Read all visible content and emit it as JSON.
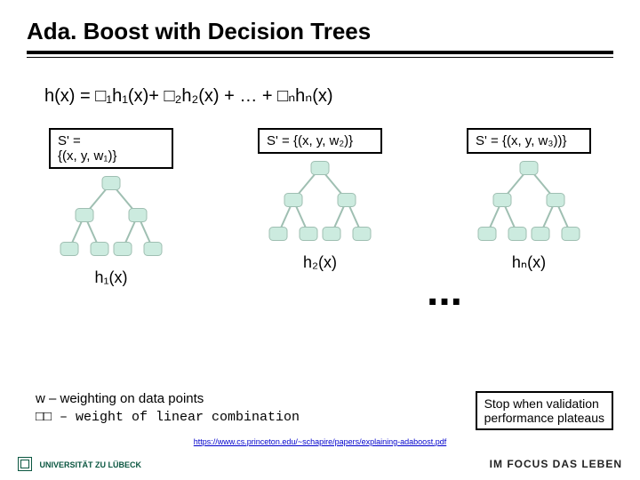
{
  "title": "Ada. Boost with Decision Trees",
  "formula": "h(x) = □₁h₁(x)+ □₂h₂(x) + … + □ₙhₙ(x)",
  "trees": [
    {
      "s_label": "S' =\n{(x, y, w₁)}",
      "h_label": "h₁(x)"
    },
    {
      "s_label": "S' = {(x, y, w₂)}",
      "h_label": "h₂(x)"
    },
    {
      "s_label": "S' = {(x, y, w₃))}",
      "h_label": "hₙ(x)"
    }
  ],
  "tree_style": {
    "node_fill": "#ccebdf",
    "node_stroke": "#9fbfb2",
    "node_radius": 10,
    "edge_color": "#9fbfb2",
    "edge_width": 2,
    "root": [
      65,
      12
    ],
    "mid": [
      [
        35,
        48
      ],
      [
        95,
        48
      ]
    ],
    "leaves": [
      [
        18,
        86
      ],
      [
        52,
        86
      ],
      [
        78,
        86
      ],
      [
        112,
        86
      ]
    ]
  },
  "ellipsis": "...",
  "notes_line1": "w – weighting on data points",
  "notes_line2": "□□ – weight of linear combination",
  "stop_text": "Stop when validation\nperformance plateaus",
  "link_text": "https://www.cs.princeton.edu/~schapire/papers/explaining-adaboost.pdf",
  "footer_left": "UNIVERSITÄT ZU LÜBECK",
  "footer_right": "IM FOCUS DAS LEBEN"
}
